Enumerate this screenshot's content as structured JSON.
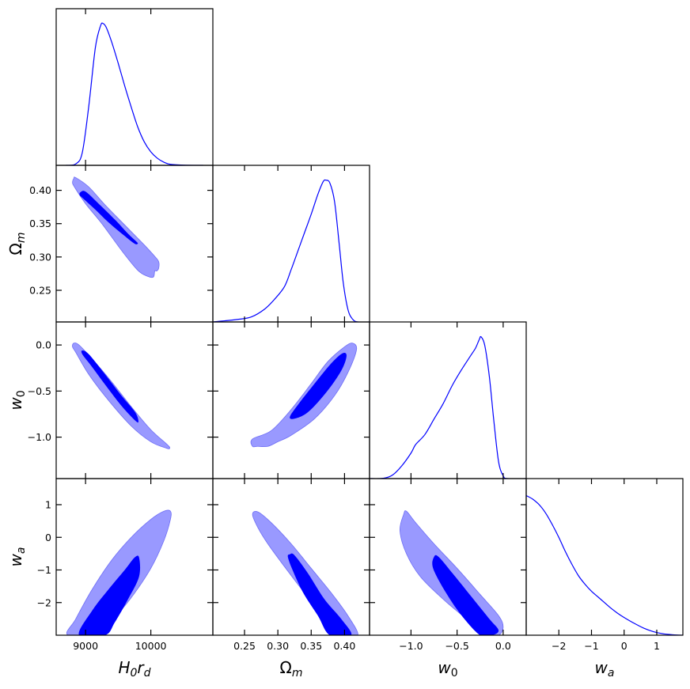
{
  "chart_data": {
    "type": "corner-plot",
    "parameters": [
      {
        "id": "H0rd",
        "label": "H0rd",
        "range": [
          8550,
          10950
        ],
        "ticks": [
          9000,
          10000
        ],
        "tick_labels": [
          "9000",
          "10000"
        ]
      },
      {
        "id": "Om",
        "label": "Ωm",
        "range": [
          0.2025,
          0.4375
        ],
        "ticks": [
          0.25,
          0.3,
          0.35,
          0.4
        ],
        "tick_labels": [
          "0.25",
          "0.30",
          "0.35",
          "0.40"
        ]
      },
      {
        "id": "w0",
        "label": "w0",
        "range": [
          -1.45,
          0.25
        ],
        "ticks": [
          -1.0,
          -0.5,
          0.0
        ],
        "tick_labels": [
          "−1.0",
          "−0.5",
          "0.0"
        ]
      },
      {
        "id": "wa",
        "label": "wa",
        "range": [
          -3.0,
          1.8
        ],
        "ticks": [
          -2,
          -1,
          0,
          1
        ],
        "tick_labels": [
          "−2",
          "−1",
          "0",
          "1"
        ]
      }
    ],
    "colors": {
      "line": "#0000ff",
      "fill_95": "#9999ff",
      "fill_68": "#0000ff"
    },
    "marginals": {
      "H0rd": [
        [
          8700,
          0.0
        ],
        [
          8850,
          0.01
        ],
        [
          8950,
          0.09
        ],
        [
          9050,
          0.42
        ],
        [
          9150,
          0.83
        ],
        [
          9230,
          0.985
        ],
        [
          9270,
          1.0
        ],
        [
          9320,
          0.97
        ],
        [
          9400,
          0.87
        ],
        [
          9500,
          0.72
        ],
        [
          9600,
          0.56
        ],
        [
          9700,
          0.41
        ],
        [
          9800,
          0.27
        ],
        [
          9900,
          0.165
        ],
        [
          10000,
          0.095
        ],
        [
          10100,
          0.05
        ],
        [
          10200,
          0.022
        ],
        [
          10300,
          0.007
        ],
        [
          10500,
          0.0015
        ],
        [
          10800,
          0.0
        ]
      ],
      "Om": [
        [
          0.2025,
          0.0
        ],
        [
          0.22,
          0.008
        ],
        [
          0.24,
          0.018
        ],
        [
          0.26,
          0.035
        ],
        [
          0.28,
          0.09
        ],
        [
          0.295,
          0.16
        ],
        [
          0.31,
          0.25
        ],
        [
          0.32,
          0.37
        ],
        [
          0.33,
          0.5
        ],
        [
          0.34,
          0.63
        ],
        [
          0.35,
          0.76
        ],
        [
          0.36,
          0.9
        ],
        [
          0.368,
          0.99
        ],
        [
          0.372,
          1.0
        ],
        [
          0.378,
          0.98
        ],
        [
          0.385,
          0.85
        ],
        [
          0.392,
          0.55
        ],
        [
          0.398,
          0.28
        ],
        [
          0.405,
          0.09
        ],
        [
          0.412,
          0.02
        ],
        [
          0.42,
          0.0
        ],
        [
          0.4375,
          0.0
        ]
      ],
      "w0": [
        [
          -1.45,
          0.0
        ],
        [
          -1.3,
          0.002
        ],
        [
          -1.2,
          0.025
        ],
        [
          -1.1,
          0.09
        ],
        [
          -1.0,
          0.18
        ],
        [
          -0.95,
          0.24
        ],
        [
          -0.85,
          0.31
        ],
        [
          -0.75,
          0.42
        ],
        [
          -0.65,
          0.53
        ],
        [
          -0.55,
          0.66
        ],
        [
          -0.45,
          0.77
        ],
        [
          -0.35,
          0.87
        ],
        [
          -0.3,
          0.92
        ],
        [
          -0.26,
          0.98
        ],
        [
          -0.24,
          1.0
        ],
        [
          -0.2,
          0.94
        ],
        [
          -0.15,
          0.72
        ],
        [
          -0.1,
          0.4
        ],
        [
          -0.05,
          0.12
        ],
        [
          0.0,
          0.02
        ],
        [
          0.05,
          0.0
        ],
        [
          0.25,
          0.0
        ]
      ],
      "wa": [
        [
          -3.0,
          0.985
        ],
        [
          -2.8,
          0.96
        ],
        [
          -2.6,
          0.92
        ],
        [
          -2.4,
          0.86
        ],
        [
          -2.2,
          0.78
        ],
        [
          -2.0,
          0.69
        ],
        [
          -1.8,
          0.59
        ],
        [
          -1.6,
          0.5
        ],
        [
          -1.4,
          0.42
        ],
        [
          -1.2,
          0.36
        ],
        [
          -1.0,
          0.31
        ],
        [
          -0.8,
          0.27
        ],
        [
          -0.6,
          0.23
        ],
        [
          -0.4,
          0.19
        ],
        [
          -0.2,
          0.155
        ],
        [
          0.0,
          0.125
        ],
        [
          0.3,
          0.085
        ],
        [
          0.6,
          0.05
        ],
        [
          0.9,
          0.025
        ],
        [
          1.2,
          0.01
        ],
        [
          1.5,
          0.003
        ],
        [
          1.8,
          0.0
        ]
      ]
    },
    "contours": [
      {
        "x": "H0rd",
        "y": "Om",
        "c95": [
          [
            8820,
            0.418
          ],
          [
            8850,
            0.419
          ],
          [
            9050,
            0.405
          ],
          [
            9300,
            0.378
          ],
          [
            9600,
            0.348
          ],
          [
            9900,
            0.318
          ],
          [
            10050,
            0.302
          ],
          [
            10120,
            0.293
          ],
          [
            10120,
            0.283
          ],
          [
            10090,
            0.279
          ],
          [
            10060,
            0.279
          ],
          [
            10040,
            0.27
          ],
          [
            9950,
            0.271
          ],
          [
            9800,
            0.28
          ],
          [
            9550,
            0.31
          ],
          [
            9250,
            0.35
          ],
          [
            9000,
            0.38
          ],
          [
            8830,
            0.405
          ],
          [
            8800,
            0.412
          ]
        ],
        "c68": [
          [
            8920,
            0.397
          ],
          [
            9000,
            0.398
          ],
          [
            9200,
            0.38
          ],
          [
            9450,
            0.356
          ],
          [
            9650,
            0.335
          ],
          [
            9780,
            0.323
          ],
          [
            9800,
            0.32
          ],
          [
            9750,
            0.32
          ],
          [
            9580,
            0.333
          ],
          [
            9350,
            0.352
          ],
          [
            9150,
            0.371
          ],
          [
            8960,
            0.388
          ],
          [
            8910,
            0.393
          ]
        ]
      },
      {
        "x": "H0rd",
        "y": "w0",
        "c95": [
          [
            8820,
            0.02
          ],
          [
            8900,
            0.0
          ],
          [
            9100,
            -0.15
          ],
          [
            9400,
            -0.4
          ],
          [
            9700,
            -0.67
          ],
          [
            10000,
            -0.92
          ],
          [
            10250,
            -1.08
          ],
          [
            10290,
            -1.12
          ],
          [
            10240,
            -1.12
          ],
          [
            10000,
            -1.05
          ],
          [
            9700,
            -0.88
          ],
          [
            9350,
            -0.6
          ],
          [
            9050,
            -0.32
          ],
          [
            8850,
            -0.08
          ],
          [
            8800,
            -0.02
          ]
        ],
        "c68": [
          [
            8950,
            -0.06
          ],
          [
            9050,
            -0.1
          ],
          [
            9300,
            -0.32
          ],
          [
            9550,
            -0.55
          ],
          [
            9760,
            -0.73
          ],
          [
            9810,
            -0.83
          ],
          [
            9760,
            -0.82
          ],
          [
            9550,
            -0.66
          ],
          [
            9300,
            -0.43
          ],
          [
            9080,
            -0.22
          ],
          [
            8950,
            -0.1
          ]
        ]
      },
      {
        "x": "Om",
        "y": "w0",
        "c95": [
          [
            0.262,
            -1.1
          ],
          [
            0.262,
            -1.02
          ],
          [
            0.29,
            -0.93
          ],
          [
            0.32,
            -0.7
          ],
          [
            0.35,
            -0.42
          ],
          [
            0.375,
            -0.18
          ],
          [
            0.4,
            -0.02
          ],
          [
            0.412,
            0.02
          ],
          [
            0.418,
            -0.05
          ],
          [
            0.405,
            -0.3
          ],
          [
            0.385,
            -0.55
          ],
          [
            0.355,
            -0.8
          ],
          [
            0.32,
            -0.98
          ],
          [
            0.3,
            -1.05
          ],
          [
            0.285,
            -1.1
          ],
          [
            0.27,
            -1.1
          ]
        ],
        "c68": [
          [
            0.318,
            -0.78
          ],
          [
            0.33,
            -0.65
          ],
          [
            0.355,
            -0.42
          ],
          [
            0.38,
            -0.2
          ],
          [
            0.397,
            -0.09
          ],
          [
            0.403,
            -0.12
          ],
          [
            0.395,
            -0.28
          ],
          [
            0.372,
            -0.52
          ],
          [
            0.345,
            -0.73
          ],
          [
            0.325,
            -0.8
          ]
        ]
      },
      {
        "x": "H0rd",
        "y": "wa",
        "c95": [
          [
            8730,
            -3.0
          ],
          [
            8850,
            -2.5
          ],
          [
            9100,
            -1.6
          ],
          [
            9400,
            -0.7
          ],
          [
            9700,
            0.0
          ],
          [
            10000,
            0.55
          ],
          [
            10200,
            0.8
          ],
          [
            10300,
            0.8
          ],
          [
            10300,
            0.55
          ],
          [
            10200,
            -0.1
          ],
          [
            10000,
            -0.95
          ],
          [
            9700,
            -1.85
          ],
          [
            9350,
            -2.7
          ],
          [
            9250,
            -3.0
          ]
        ],
        "c68": [
          [
            8900,
            -3.0
          ],
          [
            9100,
            -2.25
          ],
          [
            9350,
            -1.6
          ],
          [
            9600,
            -1.0
          ],
          [
            9750,
            -0.62
          ],
          [
            9820,
            -0.62
          ],
          [
            9820,
            -1.2
          ],
          [
            9650,
            -1.9
          ],
          [
            9450,
            -2.6
          ],
          [
            9300,
            -3.0
          ]
        ]
      },
      {
        "x": "Om",
        "y": "wa",
        "c95": [
          [
            0.262,
            0.7
          ],
          [
            0.27,
            0.78
          ],
          [
            0.29,
            0.45
          ],
          [
            0.32,
            -0.2
          ],
          [
            0.35,
            -0.95
          ],
          [
            0.38,
            -1.7
          ],
          [
            0.405,
            -2.4
          ],
          [
            0.42,
            -3.0
          ],
          [
            0.395,
            -3.0
          ],
          [
            0.37,
            -2.4
          ],
          [
            0.34,
            -1.7
          ],
          [
            0.31,
            -0.9
          ],
          [
            0.285,
            -0.2
          ],
          [
            0.27,
            0.3
          ]
        ],
        "c68": [
          [
            0.318,
            -0.52
          ],
          [
            0.325,
            -0.55
          ],
          [
            0.345,
            -1.1
          ],
          [
            0.37,
            -1.9
          ],
          [
            0.395,
            -2.5
          ],
          [
            0.41,
            -3.0
          ],
          [
            0.378,
            -3.0
          ],
          [
            0.36,
            -2.4
          ],
          [
            0.338,
            -1.7
          ],
          [
            0.322,
            -1.0
          ],
          [
            0.315,
            -0.6
          ]
        ]
      },
      {
        "x": "w0",
        "y": "wa",
        "c95": [
          [
            -1.08,
            0.7
          ],
          [
            -1.05,
            0.8
          ],
          [
            -0.95,
            0.45
          ],
          [
            -0.75,
            -0.2
          ],
          [
            -0.5,
            -0.95
          ],
          [
            -0.25,
            -1.75
          ],
          [
            -0.05,
            -2.4
          ],
          [
            0.0,
            -2.75
          ],
          [
            -0.05,
            -3.0
          ],
          [
            -0.2,
            -3.0
          ],
          [
            -0.4,
            -2.5
          ],
          [
            -0.65,
            -1.9
          ],
          [
            -0.9,
            -1.2
          ],
          [
            -1.05,
            -0.5
          ],
          [
            -1.12,
            0.2
          ]
        ],
        "c68": [
          [
            -0.75,
            -0.6
          ],
          [
            -0.7,
            -0.6
          ],
          [
            -0.55,
            -1.1
          ],
          [
            -0.35,
            -1.8
          ],
          [
            -0.15,
            -2.5
          ],
          [
            -0.05,
            -2.85
          ],
          [
            -0.12,
            -3.0
          ],
          [
            -0.25,
            -3.0
          ],
          [
            -0.45,
            -2.4
          ],
          [
            -0.62,
            -1.7
          ],
          [
            -0.76,
            -0.95
          ]
        ]
      }
    ]
  }
}
